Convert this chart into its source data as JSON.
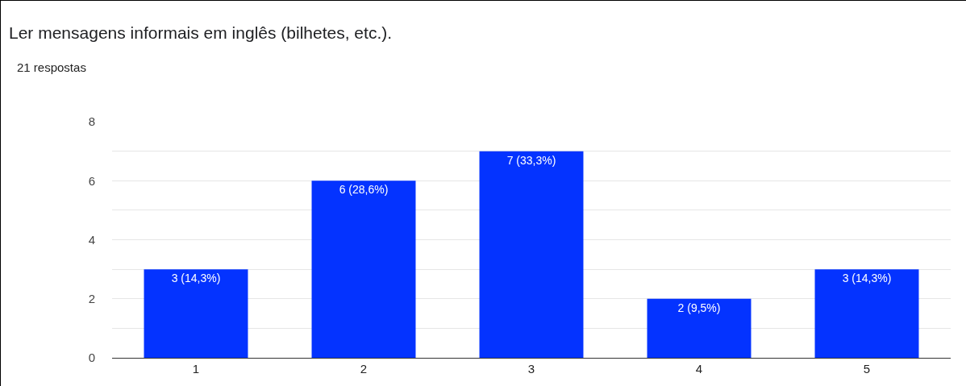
{
  "chart_data": {
    "type": "bar",
    "title": "Ler mensagens informais em inglês (bilhetes, etc.).",
    "subtitle": "21 respostas",
    "categories": [
      "1",
      "2",
      "3",
      "4",
      "5"
    ],
    "values": [
      3,
      6,
      7,
      2,
      3
    ],
    "value_labels": [
      "3 (14,3%)",
      "6 (28,6%)",
      "7 (33,3%)",
      "2 (9,5%)",
      "3 (14,3%)"
    ],
    "color": "#0433ff",
    "ylim": [
      0,
      8
    ],
    "yticks": [
      0,
      {
        "value": 1,
        "label": null
      },
      2,
      {
        "value": 3,
        "label": null
      },
      4,
      {
        "value": 5,
        "label": null
      },
      6,
      {
        "value": 7,
        "label": null
      },
      8
    ],
    "grid": "y"
  }
}
